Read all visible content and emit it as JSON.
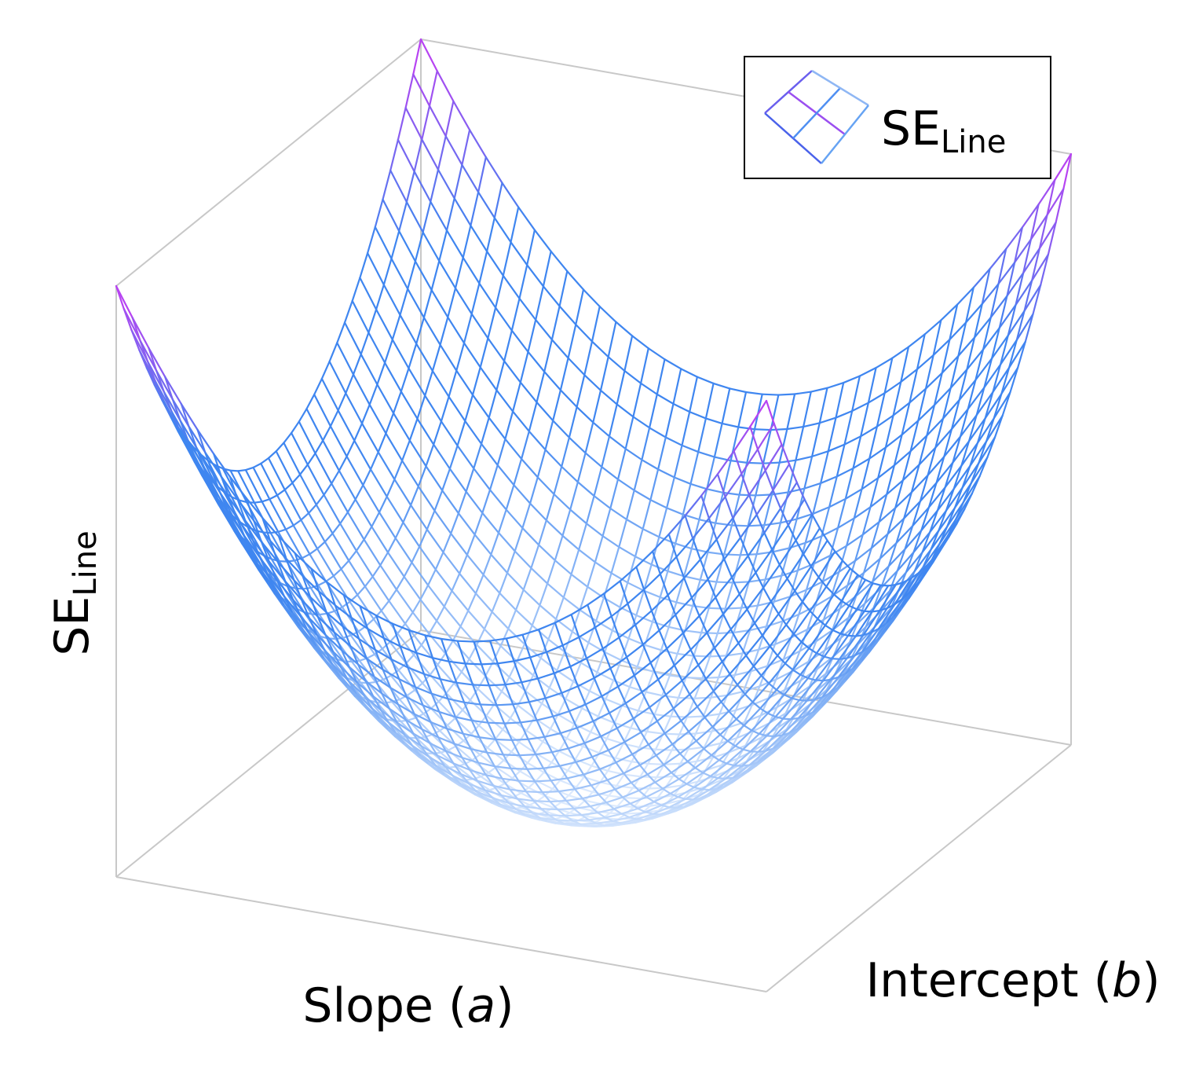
{
  "chart_data": {
    "type": "surface",
    "xlabel": {
      "main": "Slope (",
      "var": "a",
      "close": ")"
    },
    "ylabel": {
      "main": "Intercept (",
      "var": "b",
      "close": ")"
    },
    "zlabel": {
      "main": "SE",
      "sub": "Line"
    },
    "legend": {
      "position": "top-right",
      "entries": [
        {
          "main": "SE",
          "sub": "Line"
        }
      ]
    },
    "grid": false,
    "ticks": false,
    "mesh": {
      "rows": 40,
      "cols": 40
    },
    "surface": "z = a^2 + b^2 (paraboloid bowl)",
    "x_range": [
      -1,
      1
    ],
    "y_range": [
      -1,
      1
    ],
    "z_range": [
      0,
      2
    ],
    "colors": {
      "low": "#deebfd",
      "mid": "#3f86f0",
      "high": "#c23ef2",
      "box": "#c8c8c8"
    }
  }
}
